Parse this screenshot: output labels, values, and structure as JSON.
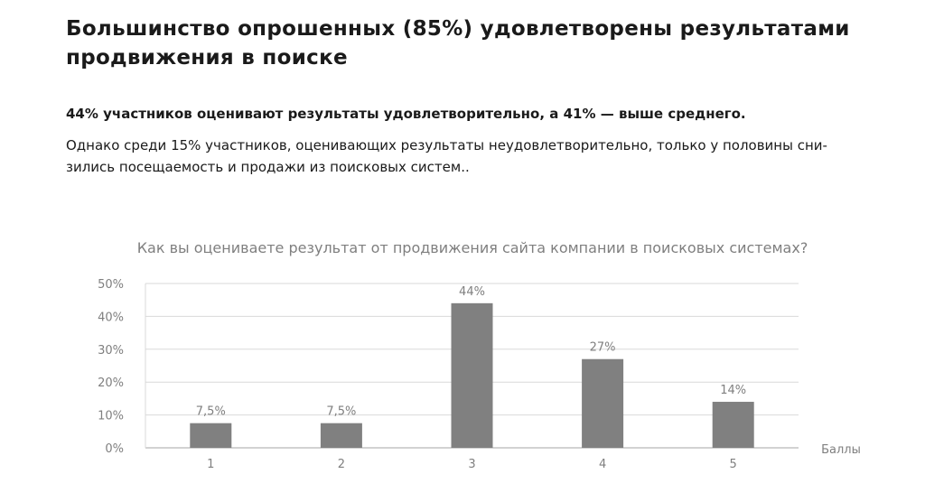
{
  "headline": {
    "line1": "Большинство опрошенных (85%) удовлетворены результатами",
    "line2": "продвижения в поиске"
  },
  "subhead": "44% участников оценивают результаты удовлетворительно, а 41% — выше среднего.",
  "paragraph": {
    "line1": "Однако среди 15% участников, оценивающих результаты неудовлетворительно, только у половины сни-",
    "line2": "зились посещаемость и продажи из поисковых систем.."
  },
  "chart_data": {
    "type": "bar",
    "title": "Как вы оцениваете результат от продвижения сайта компании в поисковых системах?",
    "xlabel": "Баллы",
    "ylabel": "",
    "categories": [
      "1",
      "2",
      "3",
      "4",
      "5"
    ],
    "values": [
      7.5,
      7.5,
      44,
      27,
      14
    ],
    "value_labels": [
      "7,5%",
      "7,5%",
      "44%",
      "27%",
      "14%"
    ],
    "ylim": [
      0,
      50
    ],
    "yticks": [
      0,
      10,
      20,
      30,
      40,
      50
    ],
    "ytick_labels": [
      "0%",
      "10%",
      "20%",
      "30%",
      "40%",
      "50%"
    ],
    "grid": true,
    "legend": "none",
    "colors": {
      "bar": "#808080",
      "grid": "#d9d9d9",
      "axis": "#a6a6a6",
      "text": "#7f7f7f"
    }
  }
}
